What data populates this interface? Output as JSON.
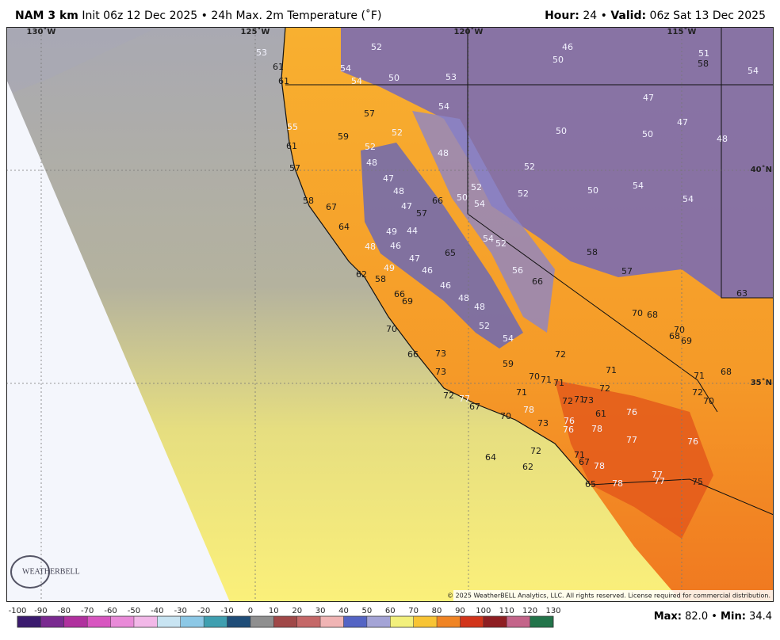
{
  "header": {
    "model": "NAM 3 km",
    "description": "Init 06z 12 Dec 2025 • 24h Max. 2m Temperature (˚F)",
    "hour_label": "Hour:",
    "hour": "24",
    "separator": "•",
    "valid_label": "Valid:",
    "valid": "06z Sat 13 Dec 2025"
  },
  "map": {
    "longitudes": [
      "130˚W",
      "125˚W",
      "120˚W",
      "115˚W"
    ],
    "latitudes": [
      "40˚N",
      "35˚N"
    ],
    "temperatures": [
      53,
      61,
      61,
      52,
      54,
      54,
      50,
      53,
      46,
      50,
      51,
      58,
      54,
      55,
      61,
      57,
      54,
      47,
      47,
      59,
      52,
      52,
      50,
      50,
      48,
      57,
      48,
      48,
      52,
      47,
      48,
      66,
      50,
      52,
      52,
      50,
      54,
      54,
      58,
      67,
      47,
      57,
      54,
      64,
      49,
      44,
      54,
      52,
      58,
      48,
      46,
      47,
      65,
      49,
      46,
      56,
      66,
      57,
      62,
      58,
      46,
      66,
      69,
      48,
      48,
      63,
      70,
      68,
      70,
      52,
      54,
      70,
      68,
      69,
      72,
      66,
      73,
      59,
      71,
      73,
      70,
      71,
      71,
      71,
      68,
      72,
      72,
      71,
      72,
      77,
      72,
      71,
      73,
      70,
      67,
      70,
      78,
      61,
      76,
      73,
      76,
      78,
      76,
      77,
      76,
      72,
      71,
      67,
      78,
      64,
      62,
      77,
      77,
      78,
      75,
      65
    ],
    "logo": "WEATHERBELL",
    "copyright": "© 2025 WeatherBELL Analytics, LLC. All rights reserved. License required for commercial distribution."
  },
  "colorbar": {
    "ticks": [
      -100,
      -90,
      -80,
      -70,
      -60,
      -50,
      -40,
      -30,
      -20,
      -10,
      0,
      10,
      20,
      30,
      40,
      50,
      60,
      70,
      80,
      90,
      100,
      110,
      120,
      130
    ],
    "colors": [
      "#3a1a6e",
      "#7a2a90",
      "#b0309e",
      "#d855c0",
      "#e98ad8",
      "#f2b8e8",
      "#c8e4f2",
      "#8cc8e6",
      "#3f9fb0",
      "#1f4d78",
      "#8f8f8f",
      "#a04848",
      "#c56868",
      "#f0b4b4",
      "#5464c4",
      "#a4a4d6",
      "#f2f07c",
      "#f8c434",
      "#f08424",
      "#d2341a",
      "#8e1e22",
      "#c4648a",
      "#22744a"
    ]
  },
  "stats": {
    "max_label": "Max:",
    "max": "82.0",
    "separator": "•",
    "min_label": "Min:",
    "min": "34.4"
  }
}
